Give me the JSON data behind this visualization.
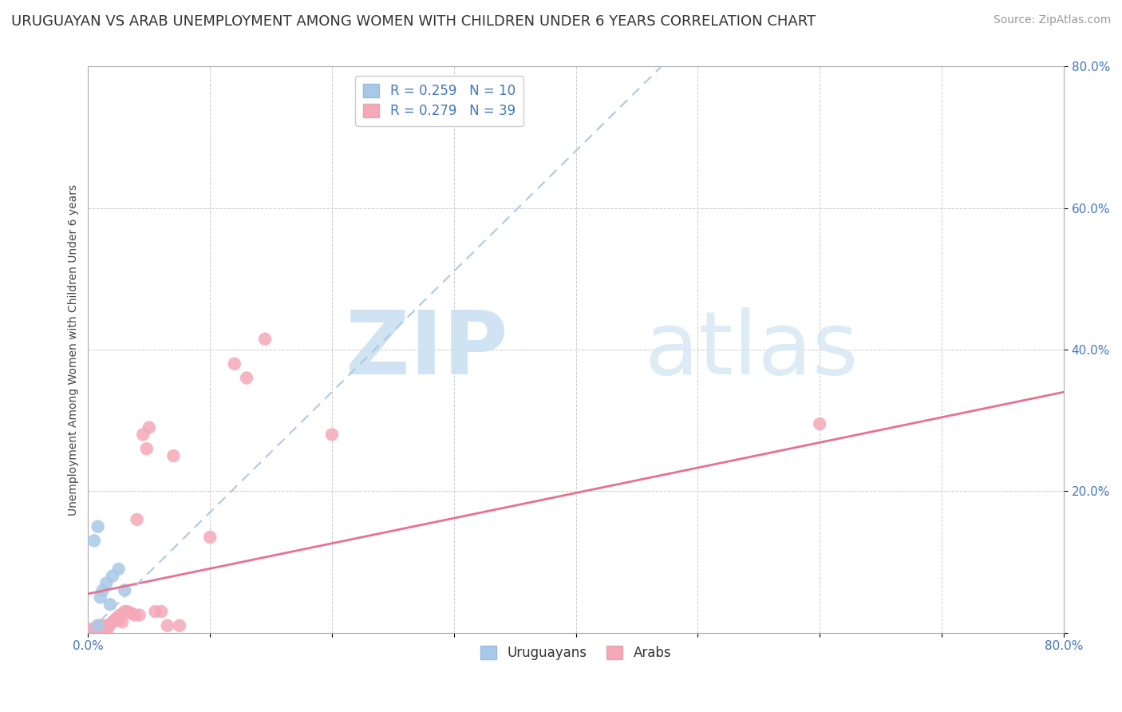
{
  "title": "URUGUAYAN VS ARAB UNEMPLOYMENT AMONG WOMEN WITH CHILDREN UNDER 6 YEARS CORRELATION CHART",
  "source": "Source: ZipAtlas.com",
  "ylabel": "Unemployment Among Women with Children Under 6 years",
  "xlim": [
    0,
    0.8
  ],
  "ylim": [
    0,
    0.8
  ],
  "legend_uruguayan": "R = 0.259   N = 10",
  "legend_arab": "R = 0.279   N = 39",
  "uruguayan_color": "#a8c8e8",
  "arab_color": "#f4a8b8",
  "uruguayan_line_color": "#b0c8e0",
  "arab_line_color": "#e87090",
  "background_color": "#ffffff",
  "watermark_zip": "ZIP",
  "watermark_atlas": "atlas",
  "title_fontsize": 13,
  "axis_label_fontsize": 10,
  "tick_fontsize": 11,
  "legend_fontsize": 12,
  "uruguayan_x": [
    0.005,
    0.008,
    0.01,
    0.012,
    0.015,
    0.018,
    0.02,
    0.025,
    0.03,
    0.008
  ],
  "uruguayan_y": [
    0.13,
    0.15,
    0.05,
    0.06,
    0.07,
    0.04,
    0.08,
    0.09,
    0.06,
    0.01
  ],
  "arab_x": [
    0.002,
    0.004,
    0.005,
    0.006,
    0.008,
    0.008,
    0.01,
    0.01,
    0.012,
    0.014,
    0.015,
    0.016,
    0.018,
    0.02,
    0.022,
    0.023,
    0.025,
    0.026,
    0.028,
    0.03,
    0.032,
    0.035,
    0.038,
    0.04,
    0.042,
    0.045,
    0.048,
    0.05,
    0.055,
    0.06,
    0.065,
    0.07,
    0.075,
    0.1,
    0.12,
    0.13,
    0.145,
    0.2,
    0.6
  ],
  "arab_y": [
    0.005,
    0.003,
    0.004,
    0.002,
    0.01,
    0.005,
    0.01,
    0.003,
    0.008,
    0.01,
    0.008,
    0.005,
    0.012,
    0.015,
    0.018,
    0.02,
    0.018,
    0.025,
    0.015,
    0.03,
    0.03,
    0.028,
    0.025,
    0.16,
    0.025,
    0.28,
    0.26,
    0.29,
    0.03,
    0.03,
    0.01,
    0.25,
    0.01,
    0.135,
    0.38,
    0.36,
    0.415,
    0.28,
    0.295
  ],
  "arab_trendline_x": [
    0.0,
    0.8
  ],
  "arab_trendline_y": [
    0.055,
    0.34
  ]
}
